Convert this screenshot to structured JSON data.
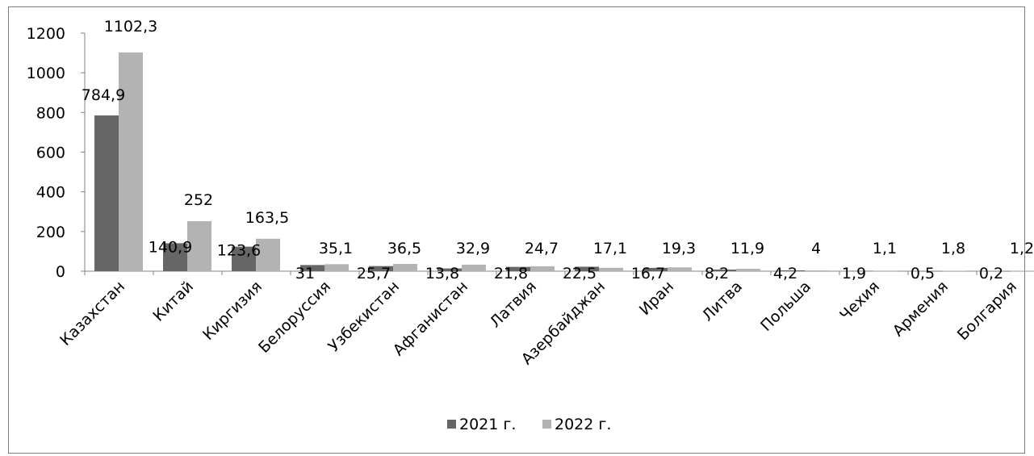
{
  "chart_data": {
    "type": "bar",
    "title": "",
    "xlabel": "",
    "ylabel": "",
    "ylim": [
      0,
      1200
    ],
    "yticks": [
      0,
      200,
      400,
      600,
      800,
      1000,
      1200
    ],
    "grid": false,
    "legend_position": "bottom",
    "categories": [
      "Казахстан",
      "Китай",
      "Киргизия",
      "Белоруссия",
      "Узбекистан",
      "Афганистан",
      "Латвия",
      "Азербайджан",
      "Иран",
      "Литва",
      "Польша",
      "Чехия",
      "Армения",
      "Болгария"
    ],
    "series": [
      {
        "name": "2021 г.",
        "color": "#666666",
        "values": [
          784.9,
          140.9,
          123.6,
          31,
          25.7,
          13.8,
          21.8,
          22.5,
          16.7,
          8.2,
          4.2,
          1.9,
          0.5,
          0.2
        ],
        "labels": [
          "784,9",
          "140,9",
          "123,6",
          "31",
          "25,7",
          "13,8",
          "21,8",
          "22,5",
          "16,7",
          "8,2",
          "4,2",
          "1,9",
          "0,5",
          "0,2"
        ]
      },
      {
        "name": "2022 г.",
        "color": "#b3b3b3",
        "values": [
          1102.3,
          252,
          163.5,
          35.1,
          36.5,
          32.9,
          24.7,
          17.1,
          19.3,
          11.9,
          4,
          1.1,
          1.8,
          1.2
        ],
        "labels": [
          "1102,3",
          "252",
          "163,5",
          "35,1",
          "36,5",
          "32,9",
          "24,7",
          "17,1",
          "19,3",
          "11,9",
          "4",
          "1,1",
          "1,8",
          "1,2"
        ]
      }
    ]
  }
}
